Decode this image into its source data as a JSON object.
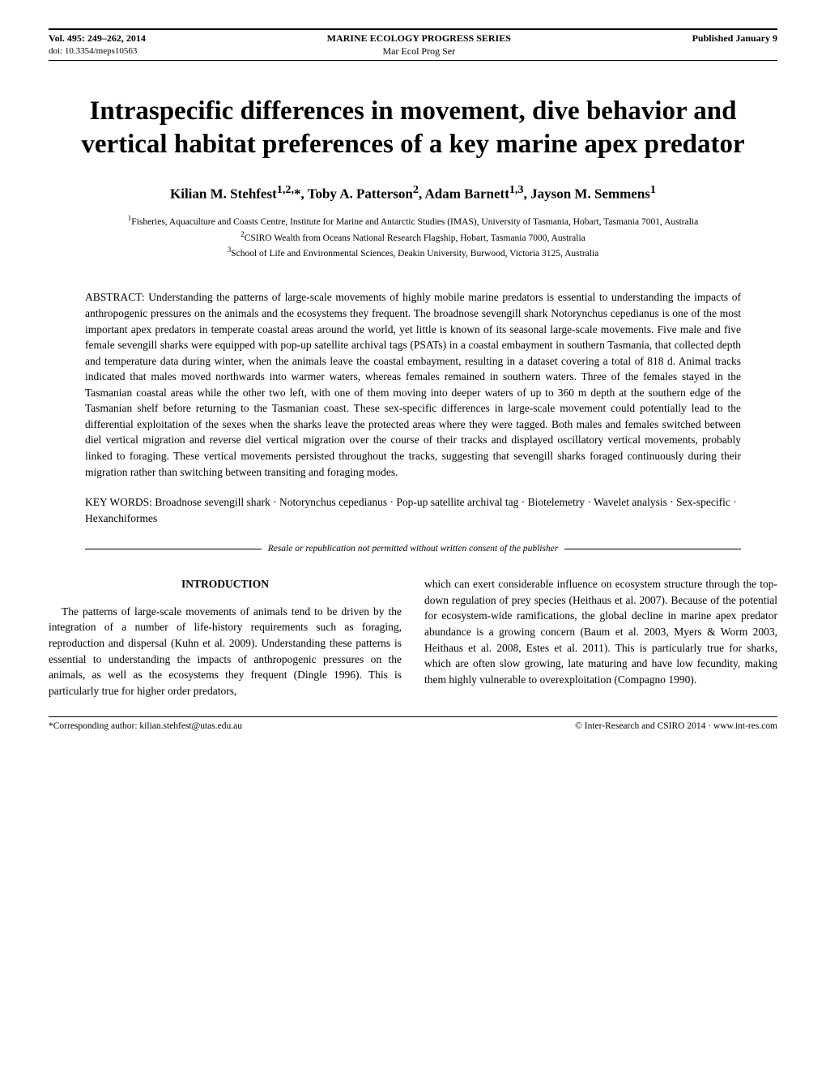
{
  "header": {
    "vol": "Vol. 495: 249–262, 2014",
    "doi": "doi: 10.3354/meps10563",
    "series_line1": "MARINE ECOLOGY PROGRESS SERIES",
    "series_line2": "Mar Ecol Prog Ser",
    "pub_date": "Published January 9"
  },
  "title": "Intraspecific differences in movement, dive behavior and vertical habitat preferences of a key marine apex predator",
  "authors_html": "Kilian M. Stehfest<sup>1,2,</sup>*, Toby A. Patterson<sup>2</sup>, Adam Barnett<sup>1,3</sup>, Jayson M. Semmens<sup>1</sup>",
  "affiliations": [
    "<sup>1</sup>Fisheries, Aquaculture and Coasts Centre, Institute for Marine and Antarctic Studies (IMAS), University of Tasmania, Hobart, Tasmania 7001, Australia",
    "<sup>2</sup>CSIRO Wealth from Oceans National Research Flagship, Hobart, Tasmania 7000, Australia",
    "<sup>3</sup>School of Life and Environmental Sciences, Deakin University, Burwood, Victoria 3125, Australia"
  ],
  "abstract_label": "ABSTRACT: ",
  "abstract_body": "Understanding the patterns of large-scale movements of highly mobile marine predators is essential to understanding the impacts of anthropogenic pressures on the animals and the ecosystems they frequent. The broadnose sevengill shark Notorynchus cepedianus is one of the most important apex predators in temperate coastal areas around the world, yet little is known of its seasonal large-scale movements. Five male and five female sevengill sharks were equipped with pop-up satellite archival tags (PSATs) in a coastal embayment in southern Tasmania, that collected depth and temperature data during winter, when the animals leave the coastal embayment, resulting in a dataset covering a total of 818 d. Animal tracks indicated that males moved northwards into warmer waters, whereas females remained in southern waters. Three of the females stayed in the Tasmanian coastal areas while the other two left, with one of them moving into deeper waters of up to 360 m depth at the southern edge of the Tasmanian shelf before returning to the Tasmanian coast. These sex-specific differences in large-scale movement could potentially lead to the differential exploitation of the sexes when the sharks leave the protected areas where they were tagged. Both males and females switched between diel vertical migration and reverse diel vertical migration over the course of their tracks and displayed oscillatory vertical movements, probably linked to foraging. These vertical movements persisted throughout the tracks, suggesting that sevengill sharks foraged continuously during their migration rather than switching between transiting and foraging modes.",
  "keywords_label": "KEY WORDS:  ",
  "keywords_body": "Broadnose sevengill shark · Notorynchus cepedianus · Pop-up satellite archival tag · Biotelemetry · Wavelet analysis · Sex-specific · Hexanchiformes",
  "resale_notice": "Resale or republication not permitted without written consent of the publisher",
  "intro_heading": "INTRODUCTION",
  "intro_col1": "The patterns of large-scale movements of animals tend to be driven by the integration of a number of life-history requirements such as foraging, reproduction and dispersal (Kuhn et al. 2009). Understanding these patterns is essential to understanding the impacts of anthropogenic pressures on the animals, as well as the ecosystems they frequent (Dingle 1996). This is particularly true for higher order predators,",
  "intro_col2": "which can exert considerable influence on ecosystem structure through the top-down regulation of prey species (Heithaus et al. 2007). Because of the potential for ecosystem-wide ramifications, the global decline in marine apex predator abundance is a growing concern (Baum et al. 2003, Myers & Worm 2003, Heithaus et al. 2008, Estes et al. 2011). This is particularly true for sharks, which are often slow growing, late maturing and have low fecundity, making them highly vulnerable to overexploitation (Compagno 1990).",
  "footer": {
    "left": "*Corresponding author: kilian.stehfest@utas.edu.au",
    "right": "© Inter-Research and CSIRO 2014 · www.int-res.com"
  },
  "colors": {
    "text": "#000000",
    "background": "#ffffff",
    "rule": "#000000"
  },
  "typography": {
    "title_fontsize": 33,
    "body_fontsize": 13.5,
    "header_fontsize": 12,
    "affil_fontsize": 11.5,
    "footer_fontsize": 11.5
  }
}
